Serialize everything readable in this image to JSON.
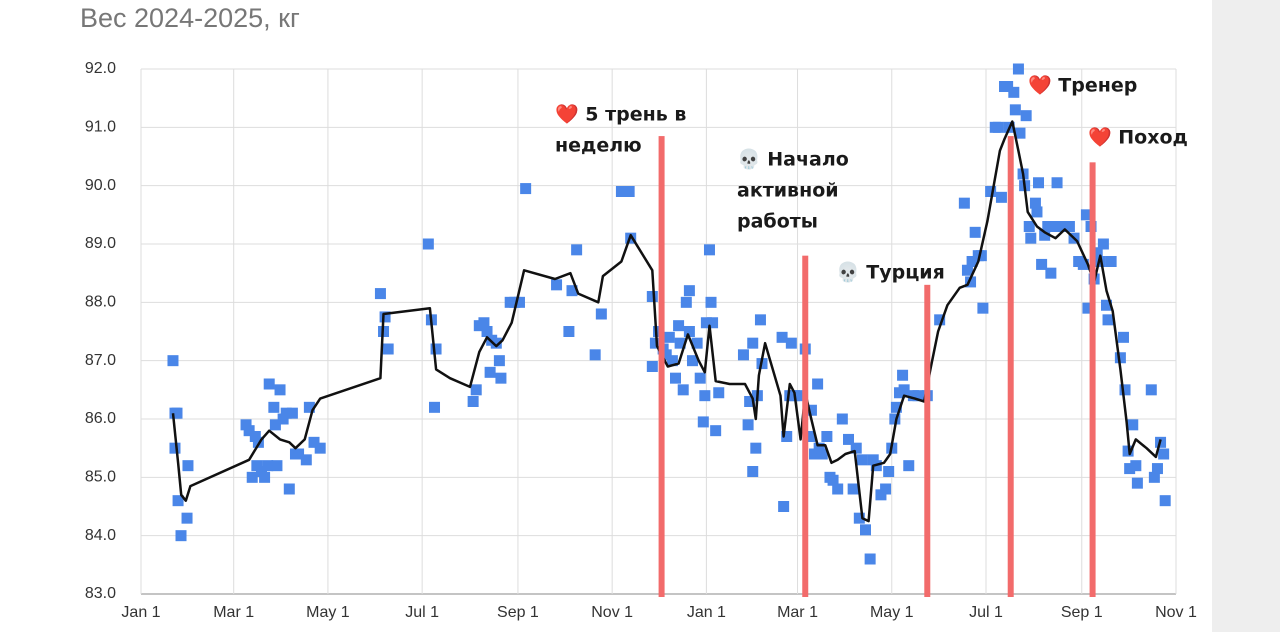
{
  "chart_data": {
    "type": "combo",
    "title": "Вес 2024-2025, кг",
    "xlim": [
      0,
      670
    ],
    "xticks": [
      {
        "value": 0,
        "label": "Jan 1"
      },
      {
        "value": 60,
        "label": "Mar 1"
      },
      {
        "value": 121,
        "label": "May 1"
      },
      {
        "value": 182,
        "label": "Jul 1"
      },
      {
        "value": 244,
        "label": "Sep 1"
      },
      {
        "value": 305,
        "label": "Nov 1"
      },
      {
        "value": 366,
        "label": "Jan 1"
      },
      {
        "value": 425,
        "label": "Mar 1"
      },
      {
        "value": 486,
        "label": "May 1"
      },
      {
        "value": 547,
        "label": "Jul 1"
      },
      {
        "value": 609,
        "label": "Sep 1"
      },
      {
        "value": 670,
        "label": "Nov 1"
      }
    ],
    "ylim": [
      83,
      92
    ],
    "yticks": [
      {
        "value": 83,
        "label": "83.0"
      },
      {
        "value": 84,
        "label": "84.0"
      },
      {
        "value": 85,
        "label": "85.0"
      },
      {
        "value": 86,
        "label": "86.0"
      },
      {
        "value": 87,
        "label": "87.0"
      },
      {
        "value": 88,
        "label": "88.0"
      },
      {
        "value": 89,
        "label": "89.0"
      },
      {
        "value": 90,
        "label": "90.0"
      },
      {
        "value": 91,
        "label": "91.0"
      },
      {
        "value": 92,
        "label": "92.0"
      }
    ],
    "grid": true,
    "series": [
      {
        "type": "scatter",
        "color": "#4a86e8",
        "x": [
          20.7,
          22,
          23.3,
          22,
          24,
          25.9,
          29.8,
          30.4,
          68,
          70,
          72,
          74,
          75,
          76,
          78,
          80,
          82,
          83,
          86,
          87,
          88,
          90,
          92,
          94,
          96,
          98,
          100,
          102,
          107,
          109,
          112,
          116,
          155,
          157,
          158,
          160,
          186,
          188,
          190,
          191,
          215,
          217,
          219,
          222,
          224,
          226,
          227,
          230,
          232,
          233,
          239,
          242,
          245,
          249,
          269,
          277,
          279,
          282,
          294,
          298,
          311,
          316,
          317,
          331,
          333,
          335,
          331,
          338,
          340,
          342,
          344,
          346,
          348,
          349,
          351,
          353,
          355,
          355,
          357,
          360,
          362,
          364,
          365,
          366,
          368,
          369,
          370,
          372,
          374,
          390,
          393,
          394,
          396,
          396,
          398,
          399,
          401,
          402,
          415,
          416,
          418,
          420,
          421,
          423,
          427,
          430,
          433,
          434,
          436,
          438,
          439,
          441,
          444,
          446,
          448,
          451,
          454,
          458,
          461,
          463,
          465,
          467,
          469,
          472,
          474,
          476,
          479,
          482,
          484,
          486,
          488,
          489,
          491,
          493,
          494,
          497,
          500,
          503,
          509,
          517,
          533,
          535,
          537,
          538,
          540,
          542,
          544,
          545,
          550,
          553,
          555,
          557,
          559,
          561,
          562,
          565,
          566,
          568,
          569,
          571,
          572,
          573,
          575,
          576,
          579,
          580,
          581,
          583,
          585,
          587,
          589,
          591,
          593,
          596,
          601,
          604,
          607,
          610,
          612,
          613,
          615,
          617,
          619,
          621,
          623,
          625,
          626,
          628,
          634,
          636,
          637,
          639,
          640,
          642,
          644,
          645,
          654,
          656,
          658,
          660,
          662,
          663
        ],
        "values": [
          87.0,
          86.1,
          86.1,
          85.5,
          84.6,
          84.0,
          84.3,
          85.2,
          85.9,
          85.8,
          85.0,
          85.7,
          85.2,
          85.6,
          85.1,
          85.0,
          85.2,
          86.6,
          86.2,
          85.9,
          85.2,
          86.5,
          86.0,
          86.1,
          84.8,
          86.1,
          85.4,
          85.4,
          85.3,
          86.2,
          85.6,
          85.5,
          88.15,
          87.5,
          87.75,
          87.2,
          89.0,
          87.7,
          86.2,
          87.2,
          86.3,
          86.5,
          87.6,
          87.65,
          87.5,
          86.8,
          87.35,
          87.3,
          87.0,
          86.7,
          88.0,
          88.0,
          88.0,
          89.95,
          88.3,
          87.5,
          88.2,
          88.9,
          87.1,
          87.8,
          89.9,
          89.9,
          89.1,
          88.1,
          87.3,
          87.5,
          86.9,
          87.2,
          87.1,
          87.4,
          87.0,
          86.7,
          87.6,
          87.3,
          86.5,
          88.0,
          88.2,
          87.5,
          87.0,
          87.3,
          86.7,
          85.95,
          86.4,
          87.65,
          88.9,
          88.0,
          87.65,
          85.8,
          86.45,
          87.1,
          85.9,
          86.3,
          87.3,
          85.1,
          85.5,
          86.4,
          87.7,
          86.95,
          87.4,
          84.5,
          85.7,
          86.4,
          87.3,
          86.4,
          86.4,
          87.2,
          85.7,
          86.15,
          85.4,
          86.6,
          85.5,
          85.4,
          85.7,
          85.0,
          84.95,
          84.8,
          86.0,
          85.65,
          84.8,
          85.5,
          84.3,
          85.3,
          84.1,
          83.6,
          85.3,
          85.2,
          84.7,
          84.8,
          85.1,
          85.5,
          86.0,
          86.2,
          86.45,
          86.75,
          86.5,
          85.2,
          86.4,
          86.4,
          86.4,
          87.7,
          89.7,
          88.55,
          88.35,
          88.7,
          89.2,
          88.8,
          88.8,
          87.9,
          89.9,
          91.0,
          91.0,
          89.8,
          91.7,
          91.7,
          91.0,
          91.6,
          91.3,
          92.0,
          90.9,
          90.2,
          90.0,
          91.2,
          89.3,
          89.1,
          89.7,
          89.55,
          90.05,
          88.65,
          89.15,
          89.3,
          88.5,
          89.3,
          90.05,
          89.3,
          89.3,
          89.1,
          88.7,
          88.65,
          89.5,
          87.9,
          89.3,
          88.4,
          88.85,
          88.7,
          89.0,
          87.95,
          87.7,
          88.7,
          87.05,
          87.4,
          86.5,
          85.45,
          85.15,
          85.9,
          85.2,
          84.9,
          86.5,
          85.0,
          85.15,
          85.6,
          85.4,
          84.6
        ]
      },
      {
        "type": "line",
        "color": "#111111",
        "x": [
          20.7,
          24,
          26,
          29,
          32,
          70,
          78,
          83,
          90,
          96,
          100,
          106,
          111,
          116,
          155,
          157,
          187,
          191,
          200,
          213,
          219,
          224,
          230,
          234,
          240,
          248,
          268,
          278,
          283,
          296,
          299,
          311,
          317,
          331,
          334,
          341,
          348,
          354,
          361,
          365,
          368,
          372,
          381,
          391,
          396,
          398,
          400,
          404,
          414,
          416,
          420,
          423,
          427,
          430,
          433,
          438,
          443,
          447,
          451,
          456,
          462,
          467,
          471,
          474,
          481,
          485,
          489,
          494,
          501,
          507,
          511,
          516,
          522,
          530,
          535,
          542,
          548,
          556,
          559,
          564,
          568,
          571,
          574,
          580,
          585,
          592,
          598,
          606,
          613,
          617,
          621,
          625,
          629,
          634,
          638,
          640,
          644,
          651,
          657,
          660
        ],
        "values": [
          86.1,
          85.25,
          84.7,
          84.6,
          84.85,
          85.3,
          85.65,
          85.8,
          85.65,
          85.6,
          85.5,
          85.65,
          86.15,
          86.35,
          86.7,
          87.8,
          87.9,
          86.85,
          86.7,
          86.55,
          87.15,
          87.4,
          87.25,
          87.35,
          87.65,
          88.55,
          88.4,
          88.5,
          88.15,
          88.0,
          88.45,
          88.7,
          89.15,
          88.55,
          87.25,
          86.9,
          86.95,
          87.45,
          87.0,
          86.8,
          87.6,
          86.65,
          86.6,
          86.6,
          86.35,
          86.0,
          86.75,
          87.3,
          86.4,
          85.7,
          86.6,
          86.45,
          85.65,
          86.45,
          86.1,
          85.55,
          85.55,
          85.25,
          85.3,
          85.4,
          85.45,
          84.3,
          84.25,
          85.2,
          85.25,
          85.4,
          86.0,
          86.4,
          86.35,
          86.3,
          86.85,
          87.5,
          87.95,
          88.25,
          88.3,
          88.7,
          89.4,
          90.6,
          90.8,
          91.1,
          90.6,
          90.2,
          89.55,
          89.3,
          89.2,
          89.1,
          89.25,
          89.05,
          88.65,
          88.35,
          88.8,
          88.2,
          87.85,
          86.85,
          85.95,
          85.4,
          85.65,
          85.5,
          85.35,
          85.65
        ]
      }
    ],
    "annotation_color": "#f26b6b",
    "annotations": [
      {
        "x": 337,
        "y": 90.85,
        "lines": [
          "❤️  5 трень в",
          "неделю"
        ]
      },
      {
        "x": 430,
        "y": 88.8,
        "lines": [
          "💀  Начало",
          "активной",
          "работы"
        ]
      },
      {
        "x": 509,
        "y": 88.3,
        "lines": [
          "💀  Турция"
        ]
      },
      {
        "x": 563,
        "y": 90.85,
        "lines": [
          "❤️  Тренер"
        ]
      },
      {
        "x": 616,
        "y": 90.4,
        "lines": [
          "❤️  Поход"
        ]
      }
    ]
  }
}
